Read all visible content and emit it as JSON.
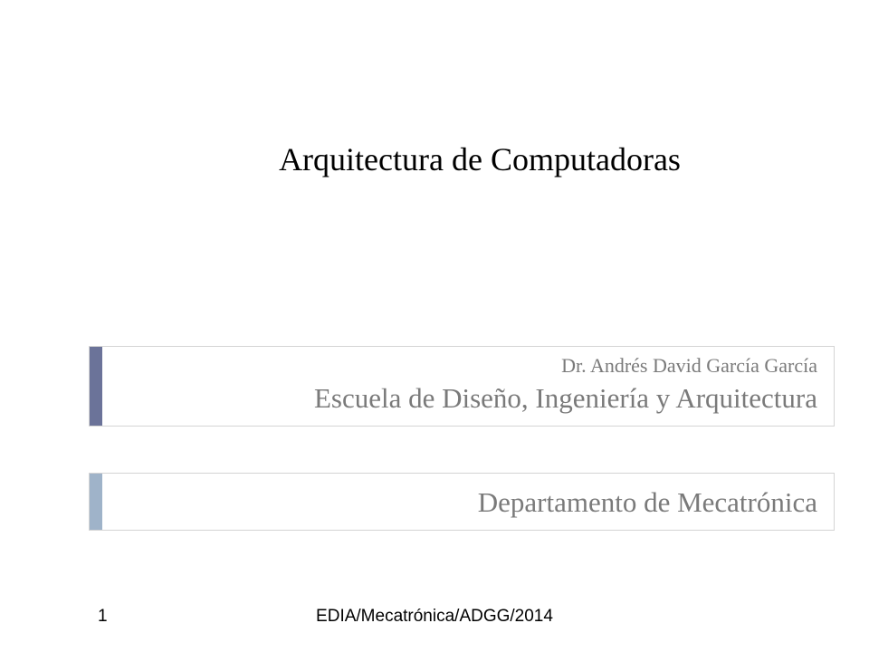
{
  "title": "Arquitectura de Computadoras",
  "author": "Dr. Andrés David García García",
  "school": "Escuela de Diseño, Ingeniería y Arquitectura",
  "department": "Departamento de Mecatrónica",
  "page_number": "1",
  "footer_text": "EDIA/Mecatrónica/ADGG/2014",
  "colors": {
    "accent_dark": "#6b7399",
    "accent_light": "#9fb3c9",
    "text_gray": "#7a7a7a",
    "border": "#d4d4d4",
    "background": "#ffffff"
  },
  "typography": {
    "title_fontsize": 36,
    "author_fontsize": 22,
    "school_fontsize": 31,
    "department_fontsize": 31,
    "footer_fontsize": 19
  }
}
